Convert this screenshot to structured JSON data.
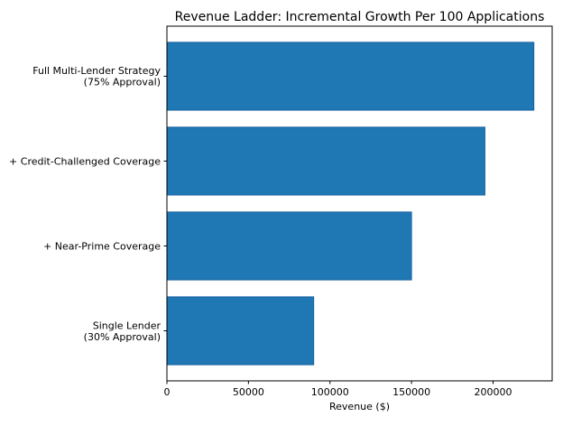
{
  "chart_data": {
    "type": "bar",
    "orientation": "horizontal",
    "title": "Revenue Ladder: Incremental Growth Per 100 Applications",
    "xlabel": "Revenue ($)",
    "ylabel": "",
    "categories": [
      [
        "Single Lender",
        "(30% Approval)"
      ],
      [
        "+ Near-Prime Coverage"
      ],
      [
        "+ Credit-Challenged Coverage"
      ],
      [
        "Full Multi-Lender Strategy",
        "(75% Approval)"
      ]
    ],
    "values": [
      90000,
      150000,
      195000,
      225000
    ],
    "xlim": [
      0,
      236250
    ],
    "xticks": [
      0,
      50000,
      100000,
      150000,
      200000
    ],
    "xtick_labels": [
      "0",
      "50000",
      "100000",
      "150000",
      "200000"
    ],
    "grid": false,
    "bar_color": "#1f77b4",
    "bar_edge_color": "#1a63a0"
  }
}
